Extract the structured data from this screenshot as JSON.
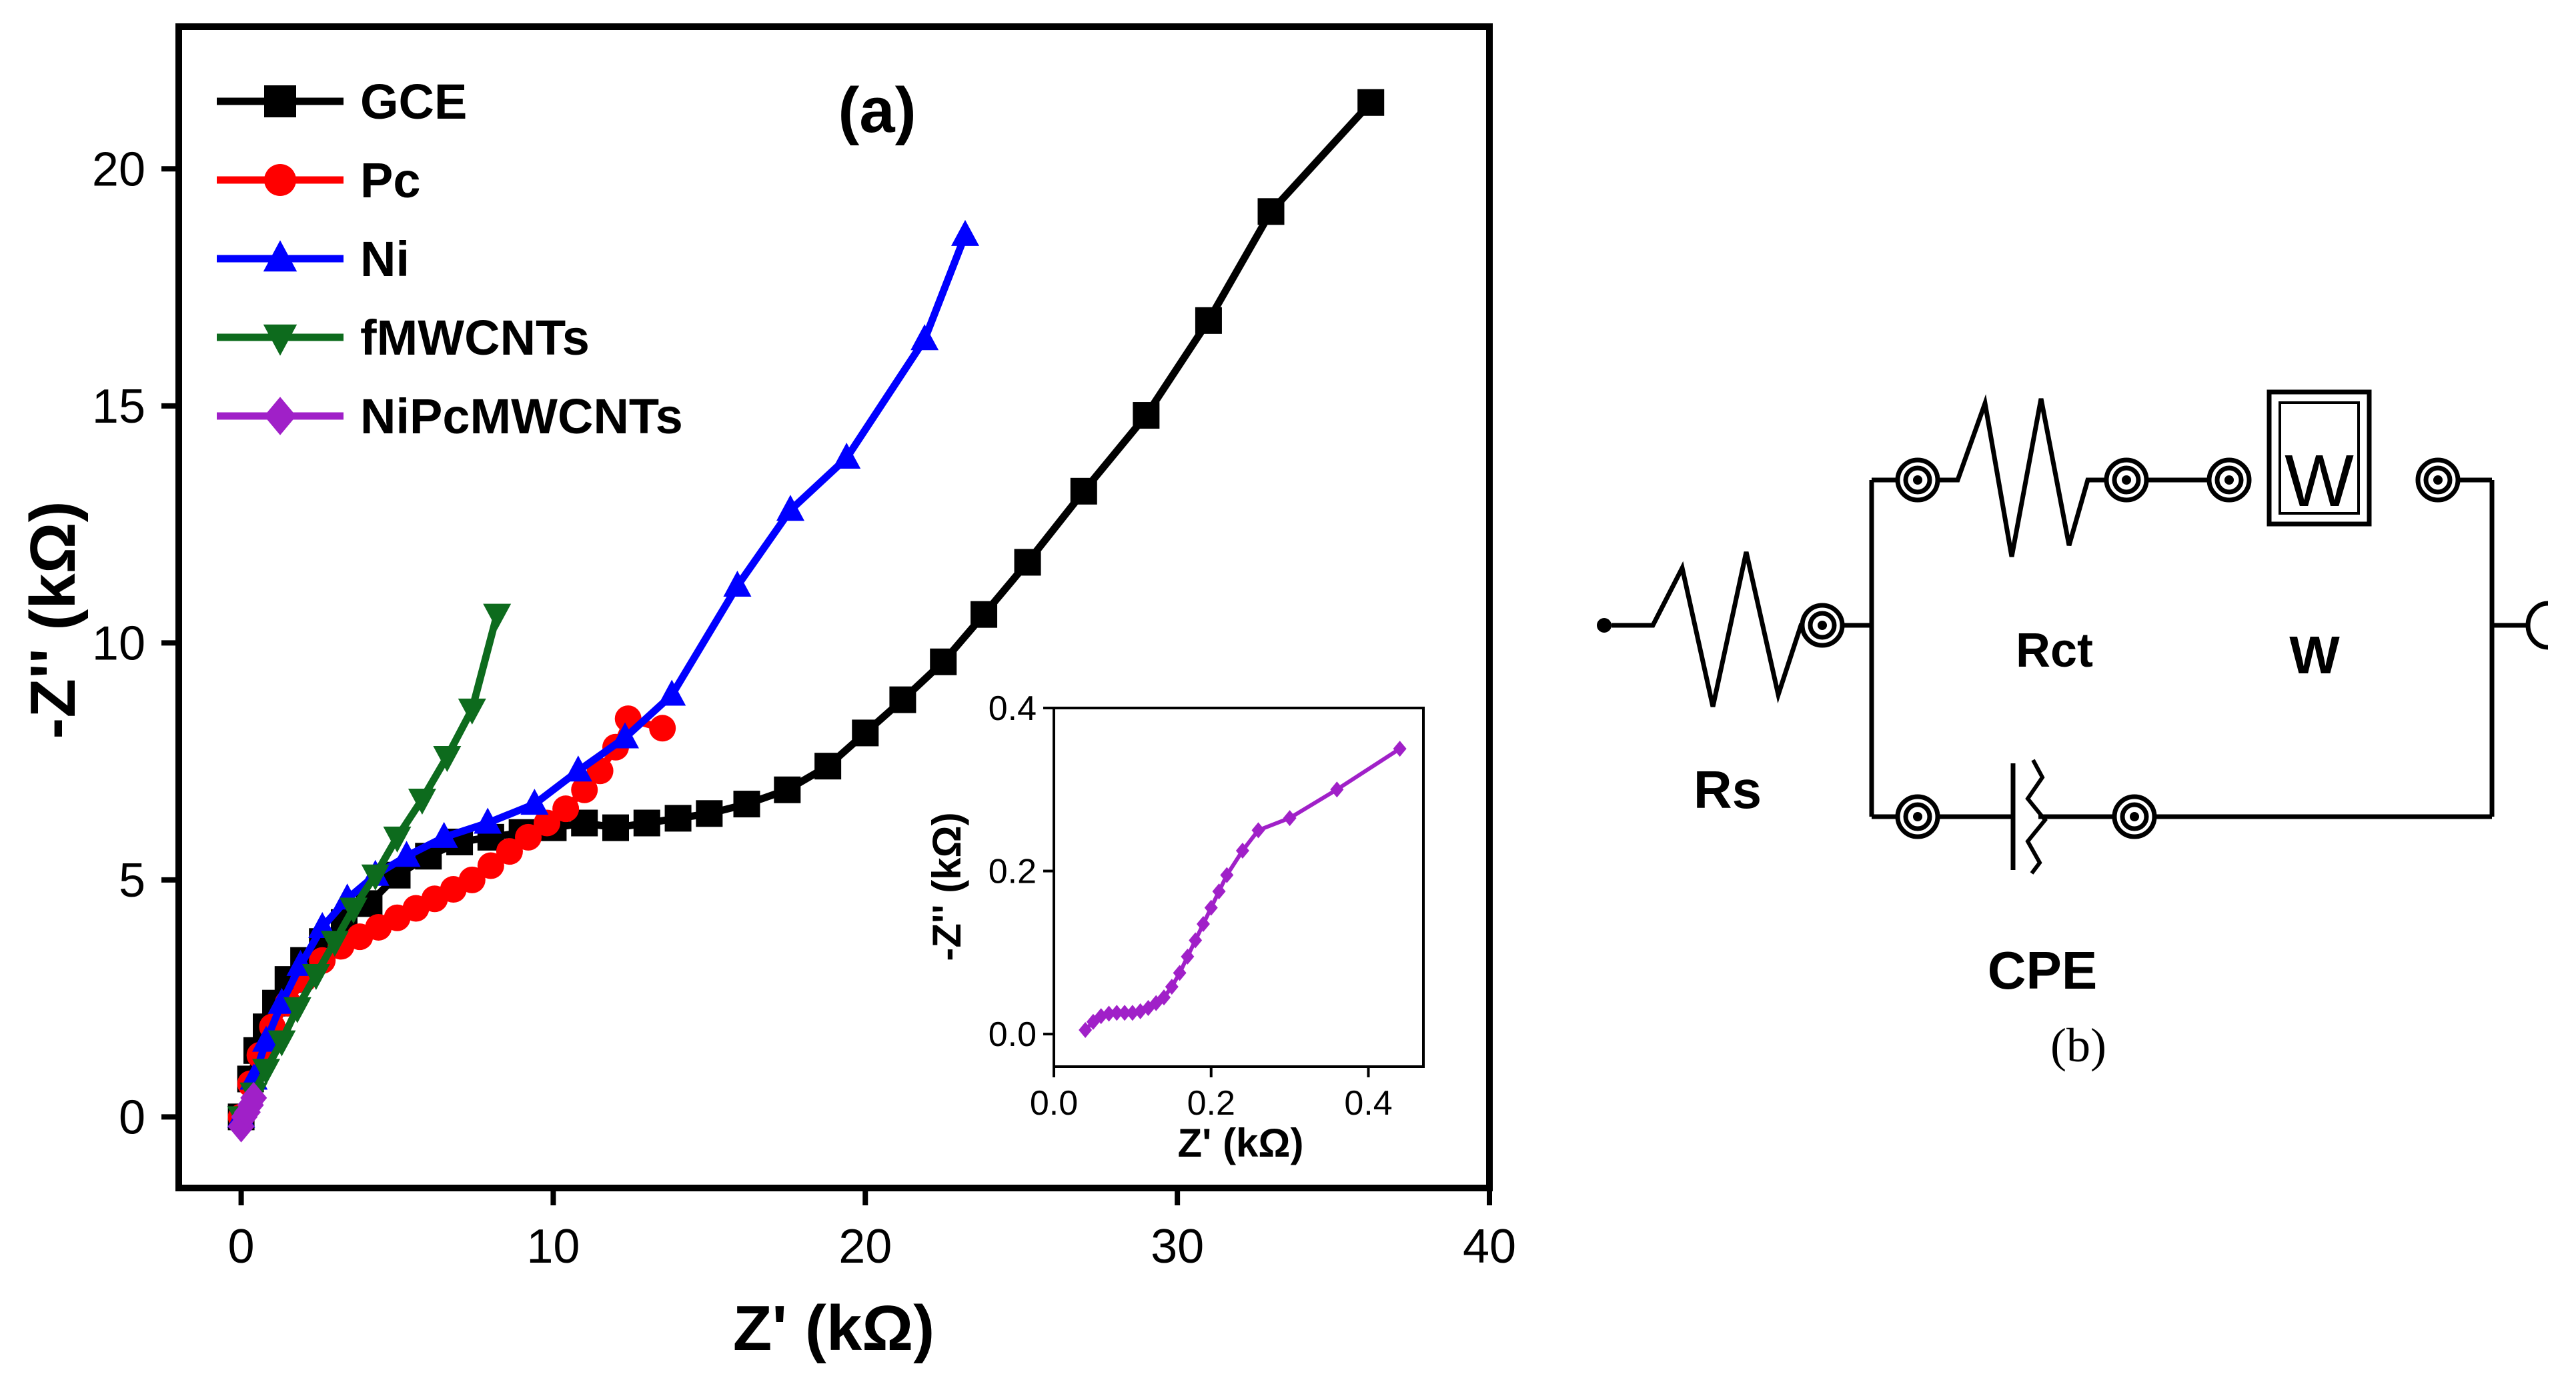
{
  "chart_data": [
    {
      "panel": "(a)",
      "type": "line",
      "xlabel": "Z' (kΩ)",
      "ylabel": "-Z'' (kΩ)",
      "xlim": [
        -2,
        40
      ],
      "ylim": [
        -1.5,
        23
      ],
      "xticks": [
        0,
        10,
        20,
        30,
        40
      ],
      "yticks": [
        0,
        5,
        10,
        15,
        20
      ],
      "legend_position": "top-left",
      "series": [
        {
          "name": "GCE",
          "color": "#000000",
          "marker": "square",
          "x": [
            0,
            0.3,
            0.5,
            0.8,
            1.1,
            1.5,
            2,
            2.6,
            3.3,
            4.1,
            5,
            6,
            7,
            8,
            9,
            10,
            11,
            12,
            13,
            14,
            15,
            16.2,
            17.5,
            18.8,
            20,
            21.2,
            22.5,
            23.8,
            25.2,
            27,
            29,
            31,
            33,
            36.2
          ],
          "y": [
            0,
            0.8,
            1.4,
            1.9,
            2.4,
            2.9,
            3.3,
            3.7,
            4.1,
            4.5,
            5.1,
            5.5,
            5.8,
            5.9,
            6.0,
            6.1,
            6.2,
            6.1,
            6.2,
            6.3,
            6.4,
            6.6,
            6.9,
            7.4,
            8.1,
            8.8,
            9.6,
            10.6,
            11.7,
            13.2,
            14.8,
            16.8,
            19.1,
            21.4
          ]
        },
        {
          "name": "Pc",
          "color": "#ff0000",
          "marker": "circle",
          "x": [
            0,
            0.3,
            0.6,
            1,
            1.5,
            2,
            2.6,
            3.2,
            3.8,
            4.4,
            5,
            5.6,
            6.2,
            6.8,
            7.4,
            8,
            8.6,
            9.2,
            9.8,
            10.4,
            11,
            11.5,
            12,
            12.4,
            13.5
          ],
          "y": [
            0,
            0.7,
            1.3,
            1.9,
            2.4,
            2.9,
            3.3,
            3.6,
            3.8,
            4.0,
            4.2,
            4.4,
            4.6,
            4.8,
            5.0,
            5.3,
            5.6,
            5.9,
            6.2,
            6.5,
            6.9,
            7.3,
            7.8,
            8.4,
            8.2
          ]
        },
        {
          "name": "Ni",
          "color": "#0000ff",
          "marker": "triangle-up",
          "x": [
            0,
            0.4,
            0.8,
            1.3,
            1.9,
            2.6,
            3.4,
            4.3,
            5.3,
            6.5,
            7.9,
            9.4,
            10.8,
            12.3,
            13.8,
            15.9,
            17.6,
            19.4,
            21.9,
            23.2
          ],
          "y": [
            0,
            0.8,
            1.6,
            2.4,
            3.2,
            4.0,
            4.6,
            5.1,
            5.5,
            5.9,
            6.2,
            6.6,
            7.3,
            8.0,
            8.9,
            11.2,
            12.8,
            13.9,
            16.4,
            18.6
          ]
        },
        {
          "name": "fMWCNTs",
          "color": "#0d6b1d",
          "marker": "triangle-down",
          "x": [
            0,
            0.4,
            0.8,
            1.3,
            1.8,
            2.4,
            3.0,
            3.6,
            4.3,
            5.0,
            5.8,
            6.6,
            7.4,
            8.2
          ],
          "y": [
            0,
            0.5,
            1.0,
            1.6,
            2.3,
            3.0,
            3.7,
            4.4,
            5.1,
            5.9,
            6.7,
            7.6,
            8.6,
            10.6
          ]
        },
        {
          "name": "NiPcMWCNTs",
          "color": "#a020c8",
          "marker": "diamond",
          "x": [
            0,
            0.1,
            0.2,
            0.3,
            0.4
          ],
          "y": [
            -0.2,
            0.0,
            0.1,
            0.25,
            0.4
          ]
        }
      ],
      "annotations": [
        "(a)"
      ]
    },
    {
      "panel": "inset",
      "type": "line",
      "xlabel": "Z' (kΩ)",
      "ylabel": "-Z'' (kΩ)",
      "xlim": [
        0,
        0.47
      ],
      "ylim": [
        -0.04,
        0.4
      ],
      "xticks": [
        0.0,
        0.2,
        0.4
      ],
      "xtick_labels": [
        "0.0",
        "0.2",
        "0.4"
      ],
      "yticks": [
        0.0,
        0.2,
        0.4
      ],
      "ytick_labels": [
        "0.0",
        "0.2",
        "0.4"
      ],
      "series": [
        {
          "name": "NiPcMWCNTs",
          "color": "#a020c8",
          "marker": "diamond",
          "x": [
            0.04,
            0.05,
            0.06,
            0.07,
            0.08,
            0.09,
            0.1,
            0.11,
            0.12,
            0.13,
            0.14,
            0.15,
            0.16,
            0.17,
            0.18,
            0.19,
            0.2,
            0.21,
            0.22,
            0.24,
            0.26,
            0.3,
            0.36,
            0.44
          ],
          "y": [
            0.005,
            0.015,
            0.022,
            0.025,
            0.026,
            0.026,
            0.026,
            0.028,
            0.032,
            0.038,
            0.045,
            0.058,
            0.075,
            0.095,
            0.115,
            0.135,
            0.155,
            0.175,
            0.195,
            0.225,
            0.25,
            0.265,
            0.3,
            0.35
          ]
        }
      ]
    }
  ],
  "circuit": {
    "labels": {
      "rs": "Rs",
      "rct": "Rct",
      "w": "W",
      "w_box": "W",
      "cpe": "CPE"
    },
    "caption": "(b)"
  }
}
